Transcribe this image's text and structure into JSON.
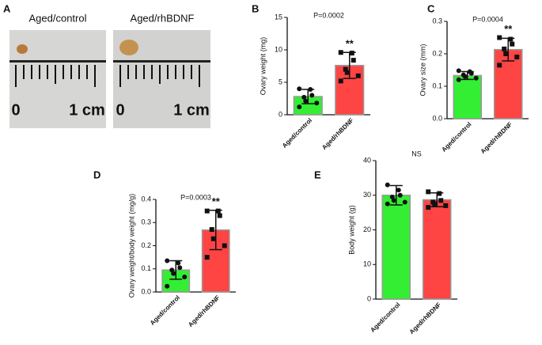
{
  "photo": {
    "panel": "A",
    "items": [
      {
        "caption": "Aged/control",
        "zero_label": "0",
        "unit_label": "1 cm"
      },
      {
        "caption": "Aged/rhBDNF",
        "zero_label": "0",
        "unit_label": "1 cm"
      }
    ]
  },
  "chart_data": [
    {
      "type": "bar",
      "panel": "B",
      "y_label": "Ovary weight (mg)",
      "annotation": "P=0.0002",
      "significance": "**",
      "categories": [
        "Aged/control",
        "Aged/rhBDNF"
      ],
      "colors": [
        "#33ee33",
        "#ff4444"
      ],
      "values": [
        2.8,
        7.6
      ],
      "errors": [
        1.1,
        2.0
      ],
      "points": [
        [
          4.0,
          3.9,
          3.0,
          2.7,
          2.1,
          1.8,
          1.2
        ],
        [
          9.6,
          9.5,
          8.4,
          7.0,
          6.5,
          6.0,
          5.2
        ]
      ],
      "ylim": [
        0,
        15
      ],
      "yticks": [
        0,
        5,
        10,
        15
      ]
    },
    {
      "type": "bar",
      "panel": "C",
      "y_label": "Ovary size (mm)",
      "annotation": "P=0.0004",
      "significance": "**",
      "categories": [
        "Aged/control",
        "Aged/rhBDNF"
      ],
      "colors": [
        "#33ee33",
        "#ff4444"
      ],
      "values": [
        0.133,
        0.213
      ],
      "errors": [
        0.012,
        0.035
      ],
      "points": [
        [
          0.148,
          0.145,
          0.14,
          0.135,
          0.13,
          0.125,
          0.12
        ],
        [
          0.25,
          0.245,
          0.23,
          0.215,
          0.2,
          0.19,
          0.165
        ]
      ],
      "ylim": [
        0,
        0.3
      ],
      "yticks": [
        {
          "value": 0,
          "label": "0.0"
        },
        0.1,
        0.2,
        0.3
      ]
    },
    {
      "type": "bar",
      "panel": "D",
      "y_label": "Ovary weight/body weight (mg/g)",
      "annotation": "P=0.0003",
      "significance": "**",
      "categories": [
        "Aged/control",
        "Aged/rhBDNF"
      ],
      "colors": [
        "#33ee33",
        "#ff4444"
      ],
      "values": [
        0.095,
        0.268
      ],
      "errors": [
        0.04,
        0.085
      ],
      "points": [
        [
          0.135,
          0.125,
          0.105,
          0.095,
          0.08,
          0.065,
          0.025
        ],
        [
          0.35,
          0.35,
          0.33,
          0.27,
          0.23,
          0.2,
          0.15
        ]
      ],
      "ylim": [
        0,
        0.4
      ],
      "yticks": [
        {
          "value": 0,
          "label": "0.0"
        },
        0.1,
        0.2,
        0.3,
        0.4
      ]
    },
    {
      "type": "bar",
      "panel": "E",
      "y_label": "Body weight (g)",
      "annotation": "NS",
      "categories": [
        "Aged/control",
        "Aged/rhBDNF"
      ],
      "colors": [
        "#33ee33",
        "#ff4444"
      ],
      "values": [
        30,
        28.7
      ],
      "errors": [
        2.8,
        2.0
      ],
      "points": [
        [
          33,
          31.5,
          30,
          29.5,
          28.5,
          28,
          27.5
        ],
        [
          31,
          30.5,
          28.5,
          28,
          27.5,
          27,
          26.5
        ]
      ],
      "ylim": [
        0,
        40
      ],
      "yticks": [
        0,
        10,
        20,
        30,
        40
      ]
    }
  ]
}
